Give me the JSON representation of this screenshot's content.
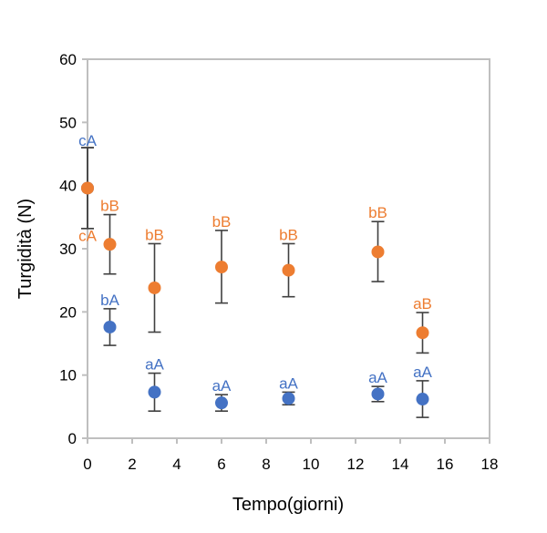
{
  "chart_data": {
    "type": "scatter",
    "title": "",
    "xlabel": "Tempo(giorni)",
    "ylabel": "Turgidità (N)",
    "xlim": [
      0,
      18
    ],
    "ylim": [
      0,
      60
    ],
    "xticks": [
      "0",
      "2",
      "4",
      "6",
      "8",
      "10",
      "12",
      "14",
      "16",
      "18"
    ],
    "yticks": [
      "0",
      "10",
      "20",
      "30",
      "40",
      "50",
      "60"
    ],
    "grid": false,
    "legend": "none",
    "series": [
      {
        "color": "#4472C4",
        "points": [
          {
            "x": 0,
            "y": 39.6,
            "err_low": 33.2,
            "err_high": 46.0,
            "label": "cA"
          },
          {
            "x": 1,
            "y": 17.6,
            "err_low": 14.7,
            "err_high": 20.5,
            "label": "bA"
          },
          {
            "x": 3,
            "y": 7.3,
            "err_low": 4.3,
            "err_high": 10.3,
            "label": "aA"
          },
          {
            "x": 6,
            "y": 5.6,
            "err_low": 4.3,
            "err_high": 6.9,
            "label": "aA"
          },
          {
            "x": 9,
            "y": 6.3,
            "err_low": 5.3,
            "err_high": 7.3,
            "label": "aA"
          },
          {
            "x": 13,
            "y": 7.0,
            "err_low": 5.8,
            "err_high": 8.2,
            "label": "aA"
          },
          {
            "x": 15,
            "y": 6.2,
            "err_low": 3.3,
            "err_high": 9.1,
            "label": "aA"
          }
        ]
      },
      {
        "color": "#ED7D31",
        "points": [
          {
            "x": 0,
            "y": 39.6,
            "err_low": 33.2,
            "err_high": 46.0,
            "label": "cA"
          },
          {
            "x": 1,
            "y": 30.7,
            "err_low": 26.0,
            "err_high": 35.4,
            "label": "bB"
          },
          {
            "x": 3,
            "y": 23.8,
            "err_low": 16.8,
            "err_high": 30.8,
            "label": "bB"
          },
          {
            "x": 6,
            "y": 27.1,
            "err_low": 21.4,
            "err_high": 32.9,
            "label": "bB"
          },
          {
            "x": 9,
            "y": 26.6,
            "err_low": 22.4,
            "err_high": 30.8,
            "label": "bB"
          },
          {
            "x": 13,
            "y": 29.5,
            "err_low": 24.8,
            "err_high": 34.3,
            "label": "bB"
          },
          {
            "x": 15,
            "y": 16.7,
            "err_low": 13.5,
            "err_high": 19.9,
            "label": "aB"
          }
        ]
      }
    ]
  }
}
